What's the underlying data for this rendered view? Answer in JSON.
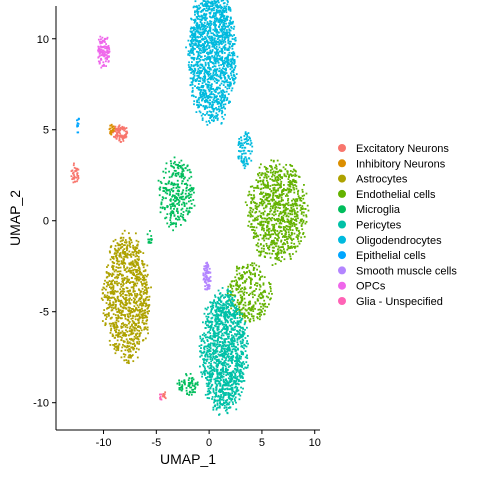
{
  "chart_data": {
    "type": "scatter",
    "title": "",
    "xlabel": "UMAP_1",
    "ylabel": "UMAP_2",
    "xlim": [
      -14.5,
      10.5
    ],
    "ylim": [
      -11.5,
      11.8
    ],
    "x_ticks": [
      -10,
      -5,
      0,
      5,
      10
    ],
    "y_ticks": [
      -10,
      -5,
      0,
      5,
      10
    ],
    "x_tick_labels": [
      "-10",
      "-5",
      "0",
      "5",
      "10"
    ],
    "y_tick_labels": [
      "-10",
      "-5",
      "0",
      "5",
      "10"
    ],
    "grid": false,
    "legend_position": "right",
    "series": [
      {
        "name": "Excitatory Neurons",
        "color": "#F8766D",
        "clusters": [
          {
            "cx": -8.4,
            "cy": 4.8,
            "rx": 0.7,
            "ry": 0.5,
            "n": 90
          },
          {
            "cx": -12.7,
            "cy": 2.6,
            "rx": 0.35,
            "ry": 0.55,
            "n": 35
          },
          {
            "cx": -4.2,
            "cy": -9.6,
            "rx": 0.2,
            "ry": 0.2,
            "n": 10
          }
        ]
      },
      {
        "name": "Inhibitory Neurons",
        "color": "#DB8E00",
        "clusters": [
          {
            "cx": -9.2,
            "cy": 5.0,
            "rx": 0.3,
            "ry": 0.3,
            "n": 20
          }
        ]
      },
      {
        "name": "Astrocytes",
        "color": "#AEA200",
        "clusters": [
          {
            "cx": -7.8,
            "cy": -4.2,
            "rx": 2.2,
            "ry": 3.5,
            "n": 1000
          }
        ]
      },
      {
        "name": "Endothelial cells",
        "color": "#64B200",
        "clusters": [
          {
            "cx": 6.4,
            "cy": 0.5,
            "rx": 2.8,
            "ry": 2.8,
            "n": 900
          },
          {
            "cx": 3.8,
            "cy": -4.0,
            "rx": 2.0,
            "ry": 1.7,
            "n": 300
          }
        ]
      },
      {
        "name": "Microglia",
        "color": "#00BD5C",
        "clusters": [
          {
            "cx": -3.1,
            "cy": 1.5,
            "rx": 1.7,
            "ry": 1.9,
            "n": 300
          },
          {
            "cx": -2.0,
            "cy": -9.0,
            "rx": 1.0,
            "ry": 0.6,
            "n": 70
          },
          {
            "cx": -5.6,
            "cy": -0.9,
            "rx": 0.25,
            "ry": 0.45,
            "n": 15
          }
        ]
      },
      {
        "name": "Pericytes",
        "color": "#00C1A7",
        "clusters": [
          {
            "cx": 1.4,
            "cy": -7.2,
            "rx": 2.2,
            "ry": 3.3,
            "n": 1300
          }
        ]
      },
      {
        "name": "Oligodendrocytes",
        "color": "#00BADE",
        "clusters": [
          {
            "cx": 0.3,
            "cy": 9.1,
            "rx": 2.3,
            "ry": 3.7,
            "n": 1500
          },
          {
            "cx": 3.4,
            "cy": 3.9,
            "rx": 0.7,
            "ry": 1.0,
            "n": 90
          }
        ]
      },
      {
        "name": "Epithelial cells",
        "color": "#00A6FF",
        "clusters": [
          {
            "cx": -12.4,
            "cy": 5.3,
            "rx": 0.15,
            "ry": 0.5,
            "n": 12
          }
        ]
      },
      {
        "name": "Smooth muscle cells",
        "color": "#B385FF",
        "clusters": [
          {
            "cx": -0.2,
            "cy": -3.1,
            "rx": 0.35,
            "ry": 0.8,
            "n": 80
          }
        ]
      },
      {
        "name": "OPCs",
        "color": "#EF67EB",
        "clusters": [
          {
            "cx": -10.0,
            "cy": 9.3,
            "rx": 0.6,
            "ry": 0.9,
            "n": 110
          }
        ]
      },
      {
        "name": "Glia - Unspecified",
        "color": "#FF63B6",
        "clusters": [
          {
            "cx": -4.6,
            "cy": -9.7,
            "rx": 0.15,
            "ry": 0.2,
            "n": 8
          }
        ]
      }
    ]
  }
}
